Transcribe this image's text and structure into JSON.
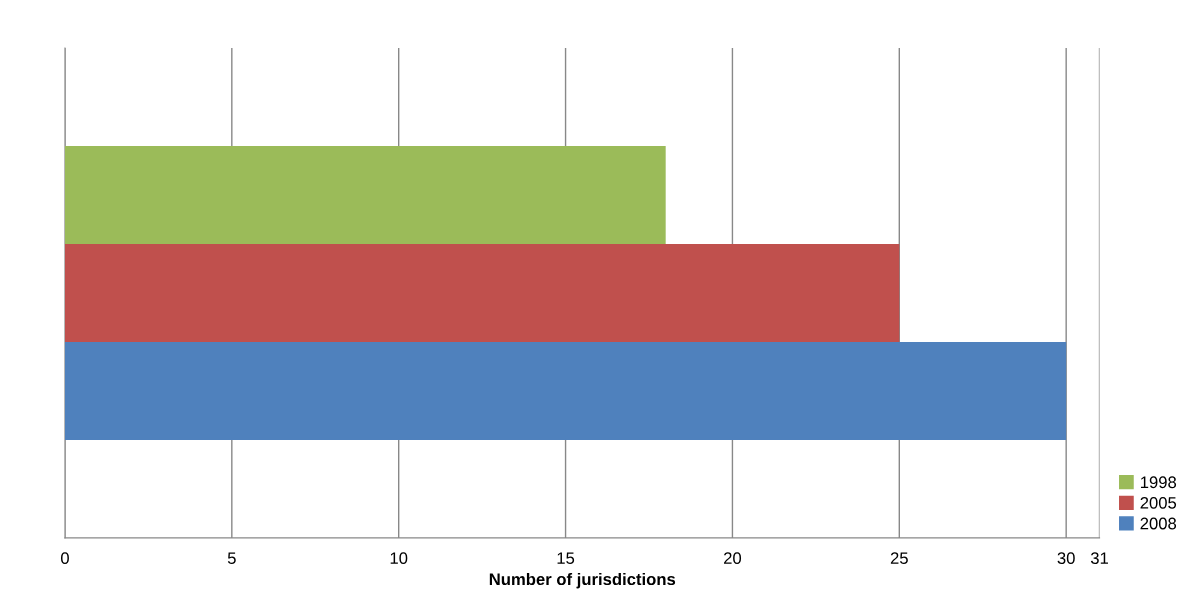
{
  "chart_data": {
    "type": "bar",
    "orientation": "horizontal",
    "xlabel": "Number of jurisdictions",
    "categories": [
      null
    ],
    "series": [
      {
        "name": "1998",
        "color": "#9bbb59",
        "values": [
          18
        ]
      },
      {
        "name": "2005",
        "color": "#c0504d",
        "values": [
          25
        ]
      },
      {
        "name": "2008",
        "color": "#4f81bd",
        "values": [
          30
        ]
      }
    ],
    "xlim": [
      0,
      31
    ],
    "xticks": [
      0,
      5,
      10,
      15,
      20,
      25,
      30,
      31
    ],
    "grid": "x",
    "legend": "bottom right"
  }
}
